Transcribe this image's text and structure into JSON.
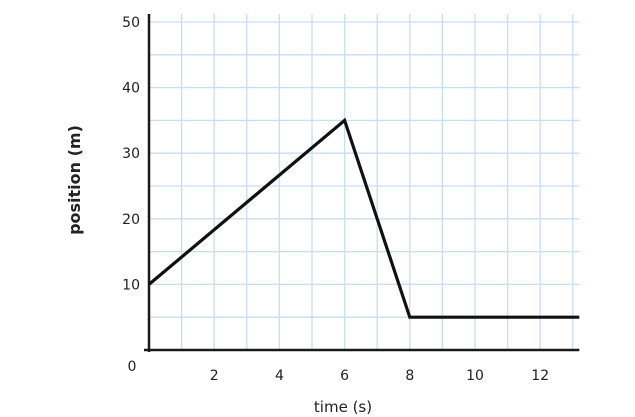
{
  "chart_data": {
    "type": "line",
    "title": "",
    "xlabel": "time (s)",
    "ylabel": "position (m)",
    "xlim": [
      0,
      13.2
    ],
    "ylim": [
      0,
      50
    ],
    "x_ticks": [
      2,
      4,
      6,
      8,
      10,
      12
    ],
    "x_tick_labels": [
      "2",
      "4",
      "6",
      "8",
      "10",
      "12"
    ],
    "y_ticks": [
      0,
      10,
      20,
      30,
      40,
      50
    ],
    "y_tick_labels": [
      "0",
      "10",
      "20",
      "30",
      "40",
      "50"
    ],
    "grid": true,
    "grid_minor_step_x": 1,
    "grid_minor_step_y": 5,
    "series": [
      {
        "x": [
          0,
          6,
          8,
          13.2
        ],
        "y": [
          10,
          35,
          5,
          5
        ]
      }
    ],
    "colors": {
      "grid": "#c8def5",
      "axis": "#1a1a1a",
      "line": "#111111"
    }
  }
}
